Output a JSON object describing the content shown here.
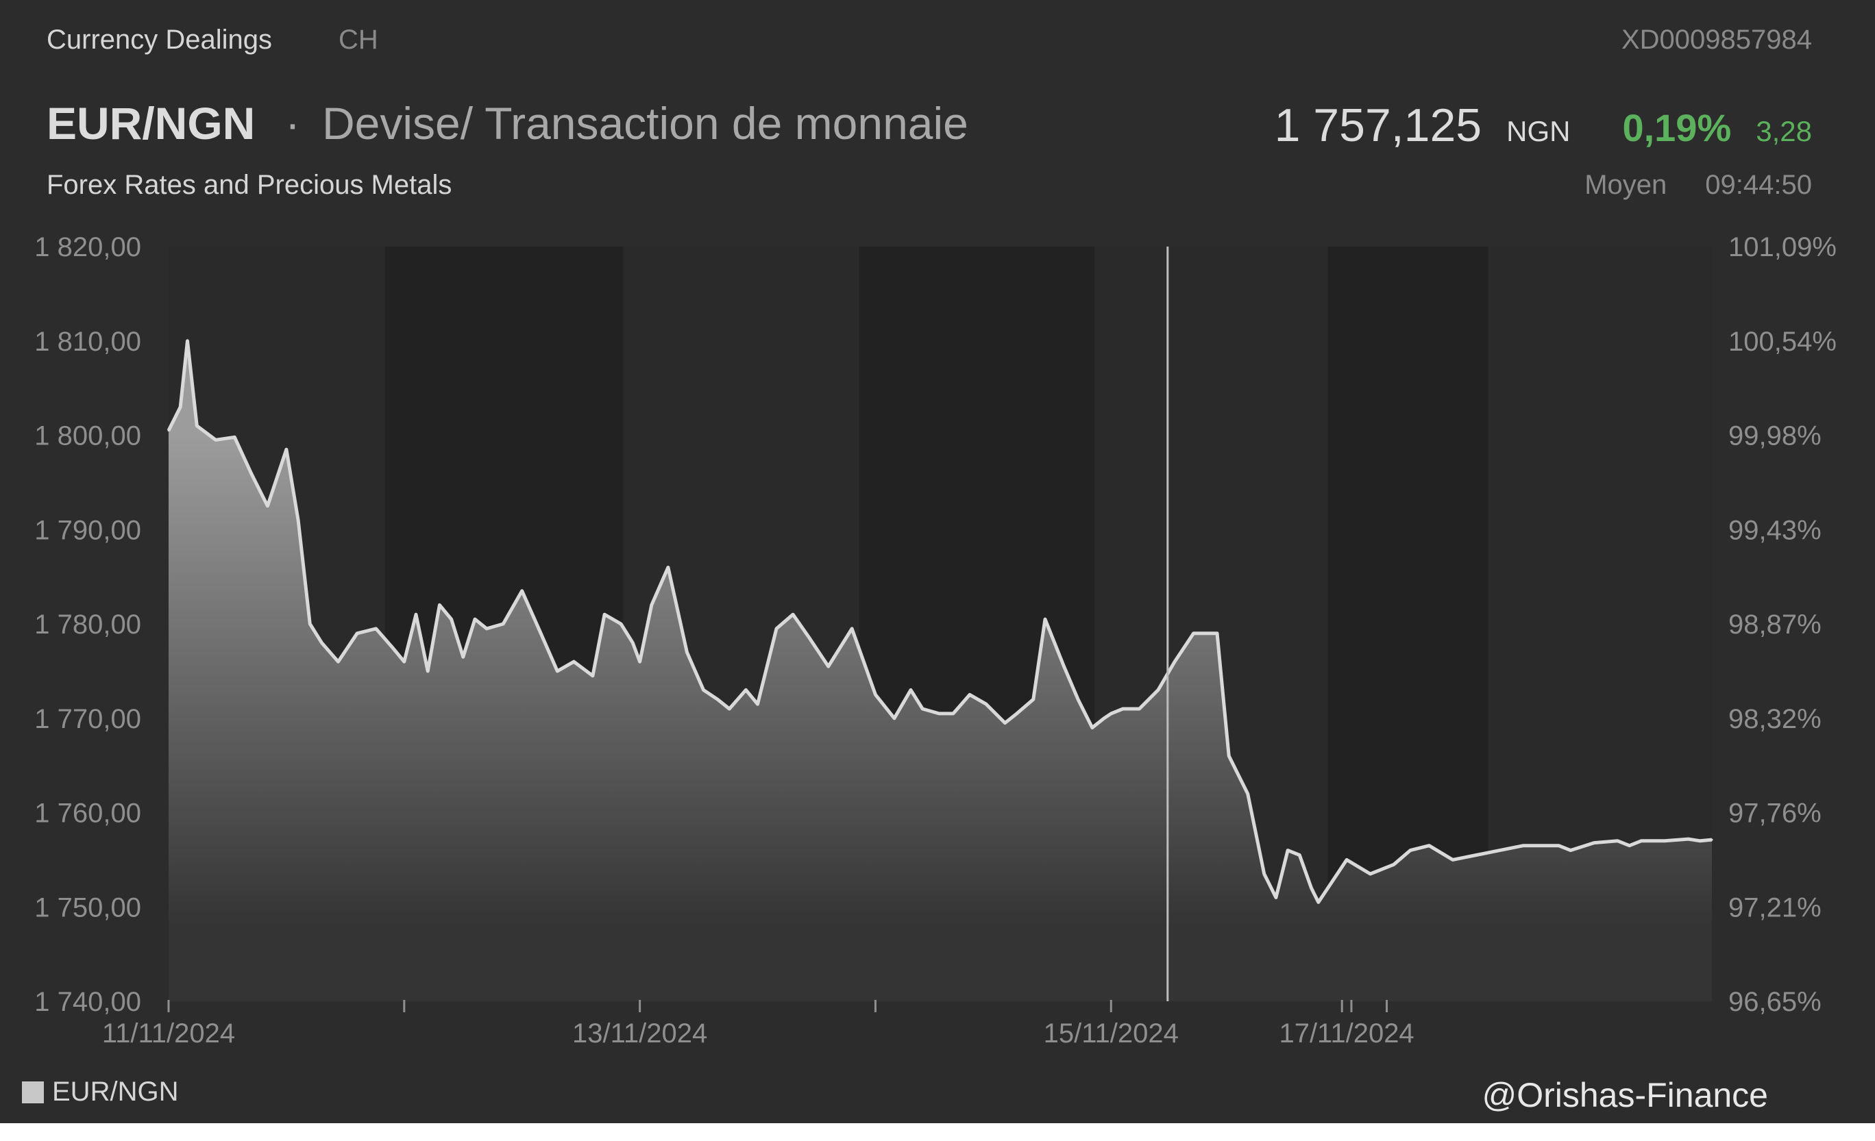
{
  "header": {
    "section_label": "Currency Dealings",
    "country_code": "CH",
    "isin": "XD0009857984",
    "pair": "EUR/NGN",
    "separator": "·",
    "description": "Devise/ Transaction de monnaie",
    "category": "Forex Rates and Precious Metals",
    "price": "1 757,125",
    "currency": "NGN",
    "change_pct": "0,19%",
    "change_abs": "3,28",
    "price_type": "Moyen",
    "time": "09:44:50"
  },
  "watermark": "@Orishas-Finance",
  "colors": {
    "background": "#2c2c2c",
    "plot_band_dark": "#232323",
    "line": "#d9d9d9",
    "positive": "#5cb25c"
  },
  "chart_data": {
    "type": "area",
    "series": [
      {
        "name": "EUR/NGN",
        "x": [
          11.0,
          11.05,
          11.08,
          11.12,
          11.2,
          11.28,
          11.35,
          11.42,
          11.5,
          11.55,
          11.6,
          11.65,
          11.72,
          11.8,
          11.88,
          11.95,
          12.0,
          12.05,
          12.1,
          12.15,
          12.2,
          12.25,
          12.3,
          12.35,
          12.42,
          12.5,
          12.58,
          12.65,
          12.72,
          12.8,
          12.85,
          12.92,
          12.97,
          13.0,
          13.05,
          13.12,
          13.2,
          13.27,
          13.33,
          13.38,
          13.45,
          13.5,
          13.58,
          13.65,
          13.72,
          13.8,
          13.9,
          14.0,
          14.08,
          14.15,
          14.2,
          14.27,
          14.33,
          14.4,
          14.47,
          14.55,
          14.6,
          14.67,
          14.72,
          14.8,
          14.86,
          14.92,
          14.97,
          15.0,
          15.05,
          15.12,
          15.2,
          15.27,
          15.35,
          15.45,
          15.5,
          15.58,
          15.65,
          15.7,
          15.75,
          15.8,
          15.85,
          15.88,
          16.0,
          16.1,
          16.2,
          16.27,
          16.35,
          16.45,
          16.55,
          16.65,
          16.75,
          16.85,
          16.9,
          16.95,
          17.05,
          17.15,
          17.2,
          17.25,
          17.35,
          17.45,
          17.5,
          17.55
        ],
        "values": [
          1800.5,
          1803.0,
          1810.0,
          1801.0,
          1799.5,
          1799.8,
          1796.0,
          1792.5,
          1798.5,
          1791.0,
          1780.0,
          1778.0,
          1776.0,
          1779.0,
          1779.5,
          1777.5,
          1776.0,
          1781.0,
          1775.0,
          1782.0,
          1780.5,
          1776.5,
          1780.5,
          1779.5,
          1780.0,
          1783.5,
          1779.0,
          1775.0,
          1776.0,
          1774.5,
          1781.0,
          1780.0,
          1778.0,
          1776.0,
          1782.0,
          1786.0,
          1777.0,
          1773.0,
          1772.0,
          1771.0,
          1773.0,
          1771.5,
          1779.5,
          1781.0,
          1778.5,
          1775.5,
          1779.5,
          1772.5,
          1770.0,
          1773.0,
          1771.0,
          1770.5,
          1770.5,
          1772.5,
          1771.5,
          1769.5,
          1770.5,
          1772.0,
          1780.5,
          1775.5,
          1772.0,
          1769.0,
          1770.0,
          1770.5,
          1771.0,
          1771.0,
          1773.0,
          1776.0,
          1779.0,
          1779.0,
          1766.0,
          1762.0,
          1753.5,
          1751.0,
          1756.0,
          1755.5,
          1752.0,
          1750.5,
          1755.0,
          1753.5,
          1754.5,
          1756.0,
          1756.5,
          1755.0,
          1755.5,
          1756.0,
          1756.5,
          1756.5,
          1756.5,
          1756.0,
          1756.8,
          1757.0,
          1756.5,
          1757.0,
          1757.0,
          1757.2,
          1757.0,
          1757.125
        ]
      }
    ],
    "x_labels": [
      {
        "x": 11.0,
        "label": "11/11/2024"
      },
      {
        "x": 13.0,
        "label": "13/11/2024"
      },
      {
        "x": 15.0,
        "label": "15/11/2024"
      },
      {
        "x": 16.0,
        "label": "17/11/2024"
      }
    ],
    "y_left_ticks": [
      "1 820,00",
      "1 810,00",
      "1 800,00",
      "1 790,00",
      "1 780,00",
      "1 770,00",
      "1 760,00",
      "1 750,00",
      "1 740,00"
    ],
    "y_left_values": [
      1820,
      1810,
      1800,
      1790,
      1780,
      1770,
      1760,
      1750,
      1740
    ],
    "y_right_ticks": [
      "101,09%",
      "100,54%",
      "99,98%",
      "99,43%",
      "98,87%",
      "98,32%",
      "97,76%",
      "97,21%",
      "96,65%"
    ],
    "ylim": [
      1740,
      1820
    ],
    "xlim": [
      11.0,
      17.55
    ],
    "crosshair_x": 15.24,
    "grid": false,
    "legend_position": "bottom-left"
  }
}
